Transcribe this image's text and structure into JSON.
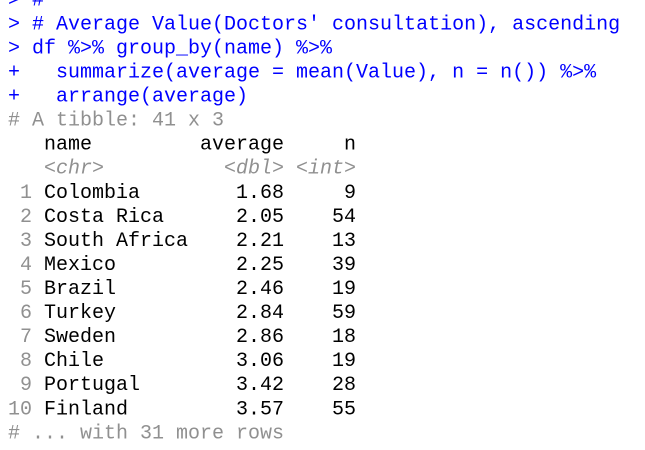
{
  "console": {
    "commands": [
      {
        "prompt": ">",
        "text": "#"
      },
      {
        "prompt": ">",
        "text": "# Average Value(Doctors' consultation), ascending"
      },
      {
        "prompt": ">",
        "text": "df %>% group_by(name) %>%"
      },
      {
        "prompt": "+",
        "text": "summarize(average = mean(Value), n = n()) %>%"
      },
      {
        "prompt": "+",
        "text": "arrange(average)"
      }
    ],
    "tibble": {
      "header": "# A tibble: 41 x 3",
      "columns": [
        "name",
        "average",
        "n"
      ],
      "types": [
        "<chr>",
        "<dbl>",
        "<int>"
      ],
      "rows": [
        [
          "1",
          "Colombia",
          "1.68",
          "9"
        ],
        [
          "2",
          "Costa Rica",
          "2.05",
          "54"
        ],
        [
          "3",
          "South Africa",
          "2.21",
          "13"
        ],
        [
          "4",
          "Mexico",
          "2.25",
          "39"
        ],
        [
          "5",
          "Brazil",
          "2.46",
          "19"
        ],
        [
          "6",
          "Turkey",
          "2.84",
          "59"
        ],
        [
          "7",
          "Sweden",
          "2.86",
          "18"
        ],
        [
          "8",
          "Chile",
          "3.06",
          "19"
        ],
        [
          "9",
          "Portugal",
          "3.42",
          "28"
        ],
        [
          "10",
          "Finland",
          "3.57",
          "55"
        ]
      ],
      "footer": "# ... with 31 more rows"
    }
  }
}
